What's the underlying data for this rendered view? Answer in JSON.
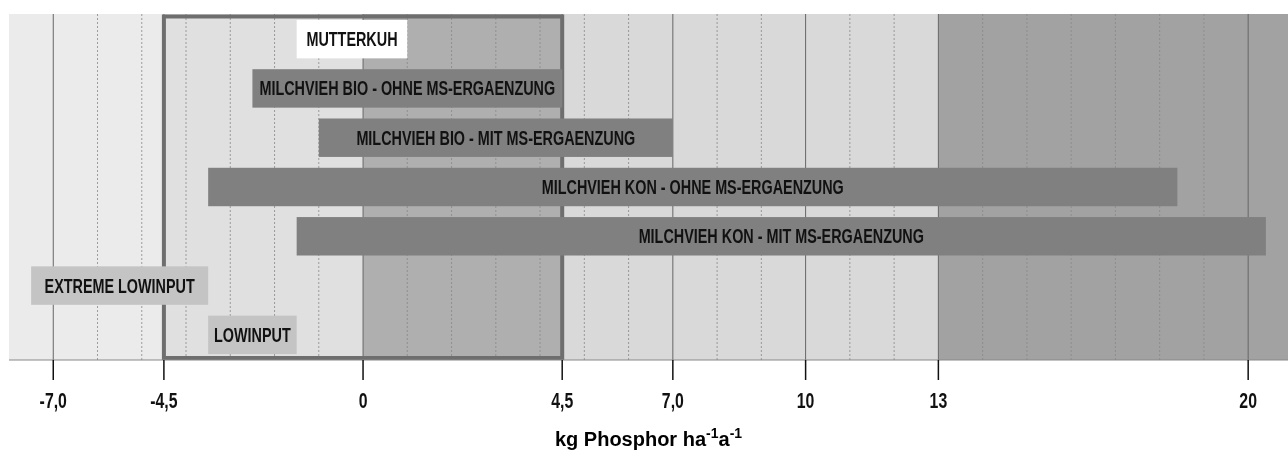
{
  "chart_data": {
    "type": "bar",
    "orientation": "horizontal",
    "xlabel": "kg Phosphor ha$^{-1}$a$^{-1}$",
    "categories": [
      "MUTTERKUH",
      "MILCHVIEH BIO - OHNE MS-ERGAENZUNG",
      "MILCHVIEH BIO - MIT MS-ERGAENZUNG",
      "MILCHVIEH KON - OHNE MS-ERGAENZUNG",
      "MILCHVIEH KON - MIT MS-ERGAENZUNG",
      "EXTREME LOWINPUT",
      "LOWINPUT"
    ],
    "base": [
      -1.5,
      -2.5,
      -1,
      -3.5,
      -1.5,
      -7.5,
      -3.5
    ],
    "values": [
      2.5,
      7,
      8,
      21.9,
      21.9,
      4,
      2
    ],
    "colors": [
      "#ffffff",
      "#808080",
      "#808080",
      "#808080",
      "#808080",
      "#c4c4c4",
      "#c4c4c4"
    ],
    "xlim": [
      -8,
      20.9
    ],
    "xticks": [
      {
        "value": -7,
        "label": "-7,0"
      },
      {
        "value": -6,
        "label": null
      },
      {
        "value": -5,
        "label": null
      },
      {
        "value": -4.5,
        "label": "-4,5"
      },
      {
        "value": -4,
        "label": null
      },
      {
        "value": -3,
        "label": null
      },
      {
        "value": -2,
        "label": null
      },
      {
        "value": -1,
        "label": null
      },
      0,
      {
        "value": 1,
        "label": null
      },
      {
        "value": 2,
        "label": null
      },
      {
        "value": 3,
        "label": null
      },
      {
        "value": 4,
        "label": null
      },
      {
        "value": 4.5,
        "label": "4,5"
      },
      {
        "value": 5,
        "label": null
      },
      {
        "value": 6,
        "label": null
      },
      {
        "value": 7,
        "label": "7,0"
      },
      {
        "value": 8,
        "label": null
      },
      {
        "value": 9,
        "label": null
      },
      10,
      {
        "value": 11,
        "label": null
      },
      {
        "value": 12,
        "label": null
      },
      13,
      {
        "value": 14,
        "label": null
      },
      {
        "value": 15,
        "label": null
      },
      {
        "value": 16,
        "label": null
      },
      {
        "value": 17,
        "label": null
      },
      {
        "value": 18,
        "label": null
      },
      {
        "value": 19,
        "label": null
      },
      20
    ],
    "tick_labels": "x",
    "grid": "x",
    "bands": [
      {
        "axis": "x",
        "from": -8,
        "to": -4.5,
        "color": "#ebebeb"
      },
      {
        "axis": "x",
        "from": -4.5,
        "to": 0,
        "color": "#e0e0e0"
      },
      {
        "axis": "x",
        "from": 0,
        "to": 4.5,
        "color": "#afafaf"
      },
      {
        "axis": "x",
        "from": 4.5,
        "to": 13,
        "color": "#d9d9d9"
      },
      {
        "axis": "x",
        "from": 13,
        "to": 20.9,
        "color": "#a2a2a2"
      }
    ]
  }
}
